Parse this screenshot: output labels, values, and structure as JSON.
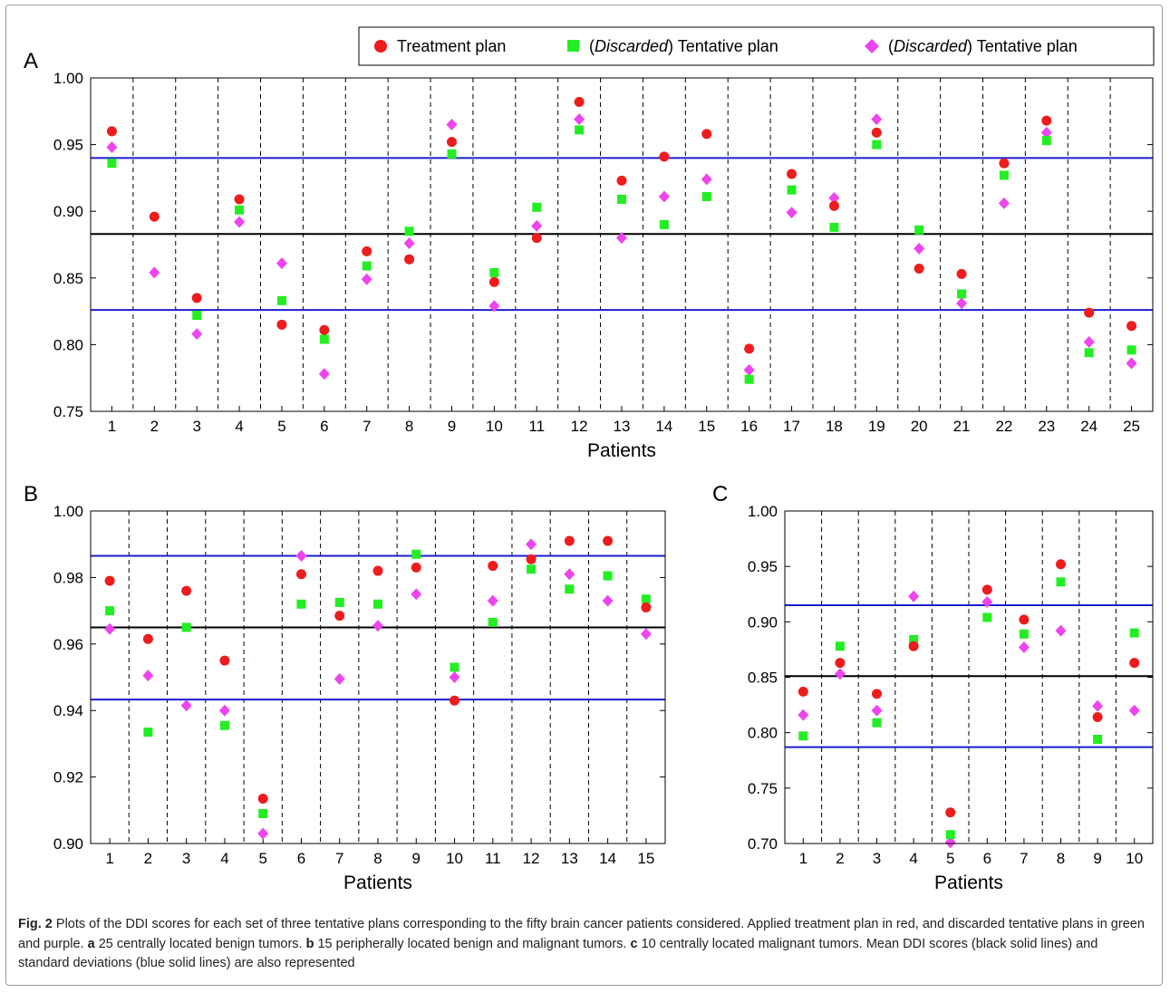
{
  "legend": {
    "items": [
      {
        "label": "Treatment plan",
        "label_prefix": "",
        "label_italic": "",
        "label_suffix": "Treatment plan",
        "color": "#ee1c1c",
        "marker": "circle"
      },
      {
        "label": "(Discarded) Tentative plan",
        "label_prefix": "(",
        "label_italic": "Discarded",
        "label_suffix": ") Tentative plan",
        "color": "#22ee22",
        "marker": "square"
      },
      {
        "label": "(Discarded) Tentative plan",
        "label_prefix": "(",
        "label_italic": "Discarded",
        "label_suffix": ") Tentative plan",
        "color": "#ee44ee",
        "marker": "diamond"
      }
    ]
  },
  "chart_data": [
    {
      "panel": "A",
      "type": "scatter",
      "xlabel": "Patients",
      "ylabel": "",
      "ylim": [
        0.75,
        1.0
      ],
      "yticks": [
        "0.75",
        "0.80",
        "0.85",
        "0.90",
        "0.95",
        "1.00"
      ],
      "categories": [
        "1",
        "2",
        "3",
        "4",
        "5",
        "6",
        "7",
        "8",
        "9",
        "10",
        "11",
        "12",
        "13",
        "14",
        "15",
        "16",
        "17",
        "18",
        "19",
        "20",
        "21",
        "22",
        "23",
        "24",
        "25"
      ],
      "mean": 0.883,
      "std_lines": [
        0.826,
        0.94
      ],
      "series": [
        {
          "name": "Treatment plan",
          "marker": "circle",
          "color": "#ee1c1c",
          "values": [
            0.96,
            0.896,
            0.835,
            0.909,
            0.815,
            0.811,
            0.87,
            0.864,
            0.952,
            0.847,
            0.88,
            0.982,
            0.923,
            0.941,
            0.958,
            0.797,
            0.928,
            0.904,
            0.959,
            0.857,
            0.853,
            0.936,
            0.968,
            0.824,
            0.814
          ]
        },
        {
          "name": "(Discarded) Tentative plan",
          "marker": "square",
          "color": "#22ee22",
          "values": [
            0.936,
            null,
            0.822,
            0.901,
            0.833,
            0.804,
            0.859,
            0.885,
            0.943,
            0.854,
            0.903,
            0.961,
            0.909,
            0.89,
            0.911,
            0.774,
            0.916,
            0.888,
            0.95,
            0.886,
            0.838,
            0.927,
            0.953,
            0.794,
            0.796
          ]
        },
        {
          "name": "(Discarded) Tentative plan",
          "marker": "diamond",
          "color": "#ee44ee",
          "values": [
            0.948,
            0.854,
            0.808,
            0.892,
            0.861,
            0.778,
            0.849,
            0.876,
            0.965,
            0.829,
            0.889,
            0.969,
            0.88,
            0.911,
            0.924,
            0.781,
            0.899,
            0.91,
            0.969,
            0.872,
            0.831,
            0.906,
            0.959,
            0.802,
            0.786
          ]
        }
      ]
    },
    {
      "panel": "B",
      "type": "scatter",
      "xlabel": "Patients",
      "ylabel": "",
      "ylim": [
        0.9,
        1.0
      ],
      "yticks": [
        "0.90",
        "0.92",
        "0.94",
        "0.96",
        "0.98",
        "1.00"
      ],
      "categories": [
        "1",
        "2",
        "3",
        "4",
        "5",
        "6",
        "7",
        "8",
        "9",
        "10",
        "11",
        "12",
        "13",
        "14",
        "15"
      ],
      "mean": 0.965,
      "std_lines": [
        0.9433,
        0.9865
      ],
      "series": [
        {
          "name": "Treatment plan",
          "marker": "circle",
          "color": "#ee1c1c",
          "values": [
            0.979,
            0.9615,
            0.976,
            0.955,
            0.9135,
            0.981,
            0.9685,
            0.982,
            0.983,
            0.943,
            0.9835,
            0.9855,
            0.991,
            0.991,
            0.971
          ]
        },
        {
          "name": "(Discarded) Tentative plan",
          "marker": "square",
          "color": "#22ee22",
          "values": [
            0.97,
            0.9335,
            0.965,
            0.9355,
            0.909,
            0.972,
            0.9725,
            0.972,
            0.987,
            0.953,
            0.9665,
            0.9825,
            0.9765,
            0.9805,
            0.9735
          ]
        },
        {
          "name": "(Discarded) Tentative plan",
          "marker": "diamond",
          "color": "#ee44ee",
          "values": [
            0.9645,
            0.9505,
            0.9415,
            0.94,
            0.903,
            0.9865,
            0.9495,
            0.9655,
            0.975,
            0.95,
            0.973,
            0.99,
            0.981,
            0.973,
            0.963
          ]
        }
      ]
    },
    {
      "panel": "C",
      "type": "scatter",
      "xlabel": "Patients",
      "ylabel": "",
      "ylim": [
        0.7,
        1.0
      ],
      "yticks": [
        "0.70",
        "0.75",
        "0.80",
        "0.85",
        "0.90",
        "0.95",
        "1.00"
      ],
      "categories": [
        "1",
        "2",
        "3",
        "4",
        "5",
        "6",
        "7",
        "8",
        "9",
        "10"
      ],
      "mean": 0.851,
      "std_lines": [
        0.787,
        0.915
      ],
      "series": [
        {
          "name": "Treatment plan",
          "marker": "circle",
          "color": "#ee1c1c",
          "values": [
            0.837,
            0.863,
            0.835,
            0.878,
            0.728,
            0.929,
            0.902,
            0.952,
            0.814,
            0.863
          ]
        },
        {
          "name": "(Discarded) Tentative plan",
          "marker": "square",
          "color": "#22ee22",
          "values": [
            0.797,
            0.878,
            0.809,
            0.884,
            0.708,
            0.904,
            0.889,
            0.936,
            0.794,
            0.89
          ]
        },
        {
          "name": "(Discarded) Tentative plan",
          "marker": "diamond",
          "color": "#ee44ee",
          "values": [
            0.816,
            0.853,
            0.82,
            0.923,
            0.701,
            0.918,
            0.877,
            0.892,
            0.824,
            0.82
          ]
        }
      ]
    }
  ],
  "caption": {
    "fig_label": "Fig. 2",
    "text1": " Plots of the DDI scores for each set of three tentative plans corresponding to the fifty brain cancer patients considered. Applied treatment plan in red, and discarded tentative plans in green and purple. ",
    "label_a": "a",
    "text_a": " 25 centrally located benign tumors. ",
    "label_b": "b",
    "text_b": " 15 peripherally located benign and malignant tumors. ",
    "label_c": "c",
    "text_c": " 10 centrally located malignant tumors. Mean DDI scores (black solid lines) and standard deviations (blue solid lines) are also represented"
  },
  "colors": {
    "mean_line": "#000000",
    "std_line": "#1c1cd0",
    "divider": "#000000",
    "border": "#9a9a9a"
  }
}
